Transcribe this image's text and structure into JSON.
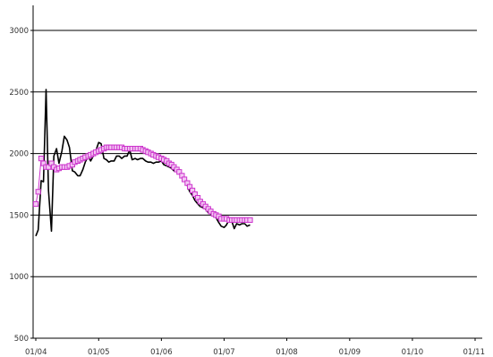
{
  "chart_data": {
    "type": "line",
    "title": "",
    "xlabel": "",
    "ylabel": "",
    "ylim": [
      500,
      3000
    ],
    "yticks": [
      500,
      1000,
      1500,
      2000,
      2500,
      3000
    ],
    "xtick_labels": [
      "01/04",
      "01/05",
      "01/06",
      "01/07",
      "01/08",
      "01/09",
      "01/10",
      "01/11"
    ],
    "grid": "horizontal",
    "legend": "none",
    "series": [
      {
        "style": "line",
        "color": "#000000",
        "points": [
          [
            "2004-01-01",
            1330
          ],
          [
            "2004-01-15",
            1380
          ],
          [
            "2004-02-01",
            1780
          ],
          [
            "2004-02-15",
            1770
          ],
          [
            "2004-03-01",
            2520
          ],
          [
            "2004-03-15",
            1700
          ],
          [
            "2004-04-01",
            1370
          ],
          [
            "2004-04-15",
            1980
          ],
          [
            "2004-05-01",
            2040
          ],
          [
            "2004-05-15",
            1920
          ],
          [
            "2004-06-01",
            2020
          ],
          [
            "2004-06-15",
            2140
          ],
          [
            "2004-07-01",
            2110
          ],
          [
            "2004-07-15",
            2050
          ],
          [
            "2004-08-01",
            1860
          ],
          [
            "2004-08-15",
            1850
          ],
          [
            "2004-09-01",
            1820
          ],
          [
            "2004-09-15",
            1820
          ],
          [
            "2004-10-01",
            1870
          ],
          [
            "2004-10-15",
            1930
          ],
          [
            "2004-11-01",
            1980
          ],
          [
            "2004-11-15",
            1940
          ],
          [
            "2004-12-01",
            1980
          ],
          [
            "2004-12-15",
            2020
          ],
          [
            "2005-01-01",
            2090
          ],
          [
            "2005-01-15",
            2080
          ],
          [
            "2005-02-01",
            1960
          ],
          [
            "2005-02-15",
            1950
          ],
          [
            "2005-03-01",
            1930
          ],
          [
            "2005-03-15",
            1940
          ],
          [
            "2005-04-01",
            1940
          ],
          [
            "2005-04-15",
            1980
          ],
          [
            "2005-05-01",
            1980
          ],
          [
            "2005-05-15",
            1960
          ],
          [
            "2005-06-01",
            1980
          ],
          [
            "2005-06-15",
            1980
          ],
          [
            "2005-07-01",
            2030
          ],
          [
            "2005-07-15",
            1950
          ],
          [
            "2005-08-01",
            1960
          ],
          [
            "2005-08-15",
            1950
          ],
          [
            "2005-09-01",
            1960
          ],
          [
            "2005-09-15",
            1960
          ],
          [
            "2005-10-01",
            1940
          ],
          [
            "2005-10-15",
            1930
          ],
          [
            "2005-11-01",
            1930
          ],
          [
            "2005-11-15",
            1920
          ],
          [
            "2005-12-01",
            1930
          ],
          [
            "2005-12-15",
            1930
          ],
          [
            "2006-01-01",
            1940
          ],
          [
            "2006-01-15",
            1910
          ],
          [
            "2006-02-01",
            1900
          ],
          [
            "2006-02-15",
            1890
          ],
          [
            "2006-03-01",
            1880
          ],
          [
            "2006-03-15",
            1860
          ],
          [
            "2006-04-01",
            1860
          ],
          [
            "2006-04-15",
            1850
          ],
          [
            "2006-05-01",
            1820
          ],
          [
            "2006-05-15",
            1790
          ],
          [
            "2006-06-01",
            1740
          ],
          [
            "2006-06-15",
            1690
          ],
          [
            "2006-07-01",
            1660
          ],
          [
            "2006-07-15",
            1620
          ],
          [
            "2006-08-01",
            1590
          ],
          [
            "2006-08-15",
            1570
          ],
          [
            "2006-09-01",
            1560
          ],
          [
            "2006-09-15",
            1550
          ],
          [
            "2006-10-01",
            1520
          ],
          [
            "2006-10-15",
            1510
          ],
          [
            "2006-11-01",
            1490
          ],
          [
            "2006-11-15",
            1480
          ],
          [
            "2006-12-01",
            1440
          ],
          [
            "2006-12-15",
            1410
          ],
          [
            "2007-01-01",
            1400
          ],
          [
            "2007-01-15",
            1420
          ],
          [
            "2007-02-01",
            1470
          ],
          [
            "2007-02-15",
            1450
          ],
          [
            "2007-03-01",
            1390
          ],
          [
            "2007-03-15",
            1430
          ],
          [
            "2007-04-01",
            1420
          ],
          [
            "2007-04-15",
            1430
          ],
          [
            "2007-05-01",
            1430
          ],
          [
            "2007-05-15",
            1410
          ],
          [
            "2007-06-01",
            1420
          ]
        ]
      },
      {
        "style": "line-markers",
        "color": "#cc33cc",
        "marker": "square-open",
        "points": [
          [
            "2004-01-01",
            1590
          ],
          [
            "2004-01-15",
            1690
          ],
          [
            "2004-02-01",
            1960
          ],
          [
            "2004-02-15",
            1920
          ],
          [
            "2004-03-01",
            1890
          ],
          [
            "2004-03-15",
            1890
          ],
          [
            "2004-04-01",
            1920
          ],
          [
            "2004-04-15",
            1890
          ],
          [
            "2004-05-01",
            1870
          ],
          [
            "2004-05-15",
            1880
          ],
          [
            "2004-06-01",
            1890
          ],
          [
            "2004-06-15",
            1890
          ],
          [
            "2004-07-01",
            1890
          ],
          [
            "2004-07-15",
            1900
          ],
          [
            "2004-08-01",
            1910
          ],
          [
            "2004-08-15",
            1930
          ],
          [
            "2004-09-01",
            1940
          ],
          [
            "2004-09-15",
            1950
          ],
          [
            "2004-10-01",
            1960
          ],
          [
            "2004-10-15",
            1970
          ],
          [
            "2004-11-01",
            1980
          ],
          [
            "2004-11-15",
            1990
          ],
          [
            "2004-12-01",
            2000
          ],
          [
            "2004-12-15",
            2010
          ],
          [
            "2005-01-01",
            2020
          ],
          [
            "2005-01-15",
            2030
          ],
          [
            "2005-02-01",
            2040
          ],
          [
            "2005-02-15",
            2050
          ],
          [
            "2005-03-01",
            2050
          ],
          [
            "2005-03-15",
            2050
          ],
          [
            "2005-04-01",
            2050
          ],
          [
            "2005-04-15",
            2050
          ],
          [
            "2005-05-01",
            2050
          ],
          [
            "2005-05-15",
            2050
          ],
          [
            "2005-06-01",
            2040
          ],
          [
            "2005-06-15",
            2040
          ],
          [
            "2005-07-01",
            2040
          ],
          [
            "2005-07-15",
            2040
          ],
          [
            "2005-08-01",
            2040
          ],
          [
            "2005-08-15",
            2040
          ],
          [
            "2005-09-01",
            2040
          ],
          [
            "2005-09-15",
            2030
          ],
          [
            "2005-10-01",
            2020
          ],
          [
            "2005-10-15",
            2010
          ],
          [
            "2005-11-01",
            2000
          ],
          [
            "2005-11-15",
            1990
          ],
          [
            "2005-12-01",
            1980
          ],
          [
            "2005-12-15",
            1970
          ],
          [
            "2006-01-01",
            1960
          ],
          [
            "2006-01-15",
            1950
          ],
          [
            "2006-02-01",
            1940
          ],
          [
            "2006-02-15",
            1920
          ],
          [
            "2006-03-01",
            1910
          ],
          [
            "2006-03-15",
            1890
          ],
          [
            "2006-04-01",
            1870
          ],
          [
            "2006-04-15",
            1850
          ],
          [
            "2006-05-01",
            1820
          ],
          [
            "2006-05-15",
            1790
          ],
          [
            "2006-06-01",
            1760
          ],
          [
            "2006-06-15",
            1730
          ],
          [
            "2006-07-01",
            1700
          ],
          [
            "2006-07-15",
            1670
          ],
          [
            "2006-08-01",
            1640
          ],
          [
            "2006-08-15",
            1610
          ],
          [
            "2006-09-01",
            1590
          ],
          [
            "2006-09-15",
            1570
          ],
          [
            "2006-10-01",
            1550
          ],
          [
            "2006-10-15",
            1530
          ],
          [
            "2006-11-01",
            1510
          ],
          [
            "2006-11-15",
            1500
          ],
          [
            "2006-12-01",
            1490
          ],
          [
            "2006-12-15",
            1470
          ],
          [
            "2007-01-01",
            1470
          ],
          [
            "2007-01-15",
            1470
          ],
          [
            "2007-02-01",
            1460
          ],
          [
            "2007-02-15",
            1460
          ],
          [
            "2007-03-01",
            1460
          ],
          [
            "2007-03-15",
            1460
          ],
          [
            "2007-04-01",
            1460
          ],
          [
            "2007-04-15",
            1460
          ],
          [
            "2007-05-01",
            1460
          ],
          [
            "2007-05-15",
            1460
          ],
          [
            "2007-06-01",
            1460
          ]
        ]
      }
    ]
  }
}
